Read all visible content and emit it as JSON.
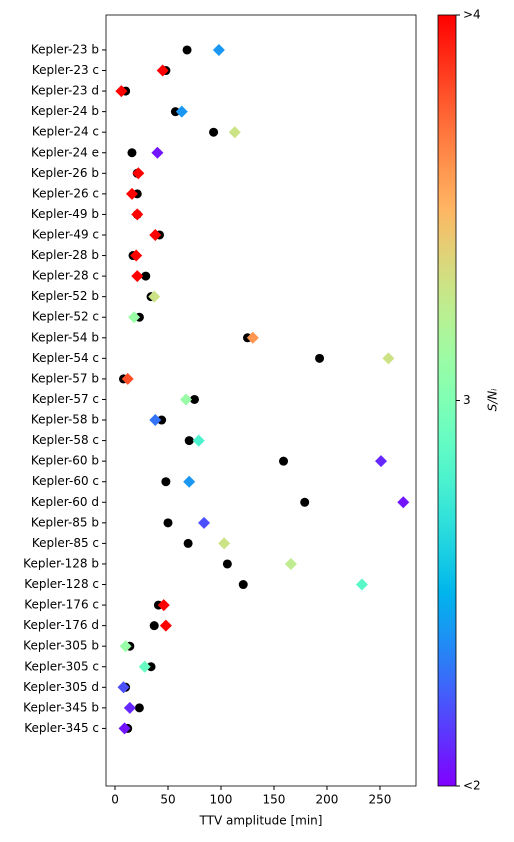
{
  "chart_data": {
    "type": "scatter",
    "categories": [
      "Kepler-23 b",
      "Kepler-23 c",
      "Kepler-23 d",
      "Kepler-24 b",
      "Kepler-24 c",
      "Kepler-24 e",
      "Kepler-26 b",
      "Kepler-26 c",
      "Kepler-49 b",
      "Kepler-49 c",
      "Kepler-28 b",
      "Kepler-28 c",
      "Kepler-52 b",
      "Kepler-52 c",
      "Kepler-54 b",
      "Kepler-54 c",
      "Kepler-57 b",
      "Kepler-57 c",
      "Kepler-58 b",
      "Kepler-58 c",
      "Kepler-60 b",
      "Kepler-60 c",
      "Kepler-60 d",
      "Kepler-85 b",
      "Kepler-85 c",
      "Kepler-128 b",
      "Kepler-128 c",
      "Kepler-176 c",
      "Kepler-176 d",
      "Kepler-305 b",
      "Kepler-305 c",
      "Kepler-305 d",
      "Kepler-345 b",
      "Kepler-345 c"
    ],
    "series": [
      {
        "color": "#000000",
        "marker": "circle",
        "values": [
          68,
          48,
          10,
          57,
          93,
          16,
          21,
          21,
          21,
          42,
          17,
          29,
          34,
          23,
          125,
          193,
          8,
          75,
          44,
          70,
          159,
          48,
          179,
          50,
          69,
          106,
          121,
          41,
          37,
          14,
          34,
          10,
          23,
          12
        ]
      },
      {
        "marker": "diamond",
        "cmap": "rainbow",
        "values": [
          98,
          45,
          6,
          63,
          113,
          40,
          22,
          16,
          21,
          38,
          20,
          21,
          37,
          18,
          130,
          258,
          12,
          67,
          38,
          79,
          251,
          70,
          272,
          84,
          103,
          166,
          233,
          46,
          48,
          10,
          28,
          8,
          14,
          9
        ],
        "c": [
          2.4,
          4,
          4,
          2.4,
          3.3,
          2.05,
          4,
          4,
          4,
          4,
          4,
          4,
          3.3,
          3.1,
          3.6,
          3.3,
          3.8,
          3.1,
          2.3,
          2.8,
          2.1,
          2.4,
          2.05,
          2.2,
          3.3,
          3.25,
          2.85,
          4,
          4,
          3.1,
          2.9,
          2.2,
          2.1,
          2.05
        ]
      }
    ],
    "xlabel": "TTV amplitude [min]",
    "xlim": [
      -8.5,
      284
    ],
    "xticks": [
      0,
      50,
      100,
      150,
      200,
      250
    ],
    "colorbar_label": "S/Nᵢ",
    "clim": [
      2,
      4
    ],
    "cticks": [
      {
        "value": 2,
        "label": "<2"
      },
      3,
      {
        "value": 4,
        "label": ">4"
      }
    ]
  }
}
